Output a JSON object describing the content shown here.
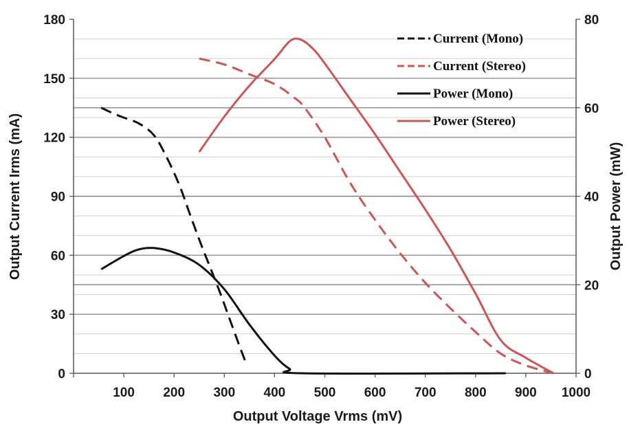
{
  "chart_data": {
    "type": "line",
    "xlabel": "Output Voltage Vrms (mV)",
    "ylabel": "Output Current Irms (mA)",
    "y2label": "Output Power (mW)",
    "xlim": [
      0,
      1000
    ],
    "ylim": [
      0,
      180
    ],
    "y2lim": [
      0,
      80
    ],
    "x_ticks": [
      "100",
      "200",
      "300",
      "400",
      "500",
      "600",
      "700",
      "800",
      "900",
      "1000"
    ],
    "y_ticks": [
      "0",
      "30",
      "60",
      "90",
      "120",
      "150",
      "180"
    ],
    "y2_ticks": [
      "0",
      "20",
      "40",
      "60",
      "80"
    ],
    "grid": true,
    "legend_position": "top-right",
    "series": [
      {
        "name": "Current (Mono)",
        "axis": "left",
        "unit": "mA",
        "style": "dashed",
        "color": "#111111",
        "points": [
          [
            55,
            135
          ],
          [
            80,
            132
          ],
          [
            100,
            130
          ],
          [
            130,
            127
          ],
          [
            160,
            121
          ],
          [
            185,
            110
          ],
          [
            210,
            96
          ],
          [
            230,
            82
          ],
          [
            250,
            68
          ],
          [
            270,
            55
          ],
          [
            290,
            42
          ],
          [
            310,
            28
          ],
          [
            330,
            14
          ],
          [
            345,
            4
          ]
        ]
      },
      {
        "name": "Current (Stereo)",
        "axis": "left",
        "unit": "mA",
        "style": "dashed",
        "color": "#cc5555",
        "points": [
          [
            250,
            160
          ],
          [
            300,
            157
          ],
          [
            350,
            152
          ],
          [
            400,
            147
          ],
          [
            440,
            140
          ],
          [
            460,
            135
          ],
          [
            500,
            120
          ],
          [
            550,
            97
          ],
          [
            600,
            78
          ],
          [
            650,
            61
          ],
          [
            700,
            46
          ],
          [
            750,
            33
          ],
          [
            800,
            21
          ],
          [
            850,
            10
          ],
          [
            900,
            4
          ],
          [
            955,
            0
          ]
        ]
      },
      {
        "name": "Power (Mono)",
        "axis": "right",
        "unit": "mW",
        "style": "solid",
        "color": "#111111",
        "points": [
          [
            55,
            23.5
          ],
          [
            100,
            26.5
          ],
          [
            130,
            28
          ],
          [
            160,
            28.3
          ],
          [
            200,
            27.3
          ],
          [
            250,
            24.5
          ],
          [
            300,
            19
          ],
          [
            350,
            11
          ],
          [
            400,
            4
          ],
          [
            430,
            1
          ],
          [
            455,
            0
          ],
          [
            860,
            0
          ]
        ]
      },
      {
        "name": "Power (Stereo)",
        "axis": "right",
        "unit": "mW",
        "style": "solid",
        "color": "#cc5555",
        "points": [
          [
            250,
            50
          ],
          [
            300,
            58
          ],
          [
            350,
            65
          ],
          [
            400,
            71
          ],
          [
            430,
            75
          ],
          [
            450,
            75.5
          ],
          [
            475,
            73.5
          ],
          [
            500,
            70
          ],
          [
            550,
            62
          ],
          [
            600,
            54
          ],
          [
            650,
            45.5
          ],
          [
            700,
            37
          ],
          [
            750,
            28
          ],
          [
            800,
            18
          ],
          [
            850,
            7.5
          ],
          [
            900,
            3.5
          ],
          [
            955,
            0
          ]
        ]
      }
    ]
  }
}
